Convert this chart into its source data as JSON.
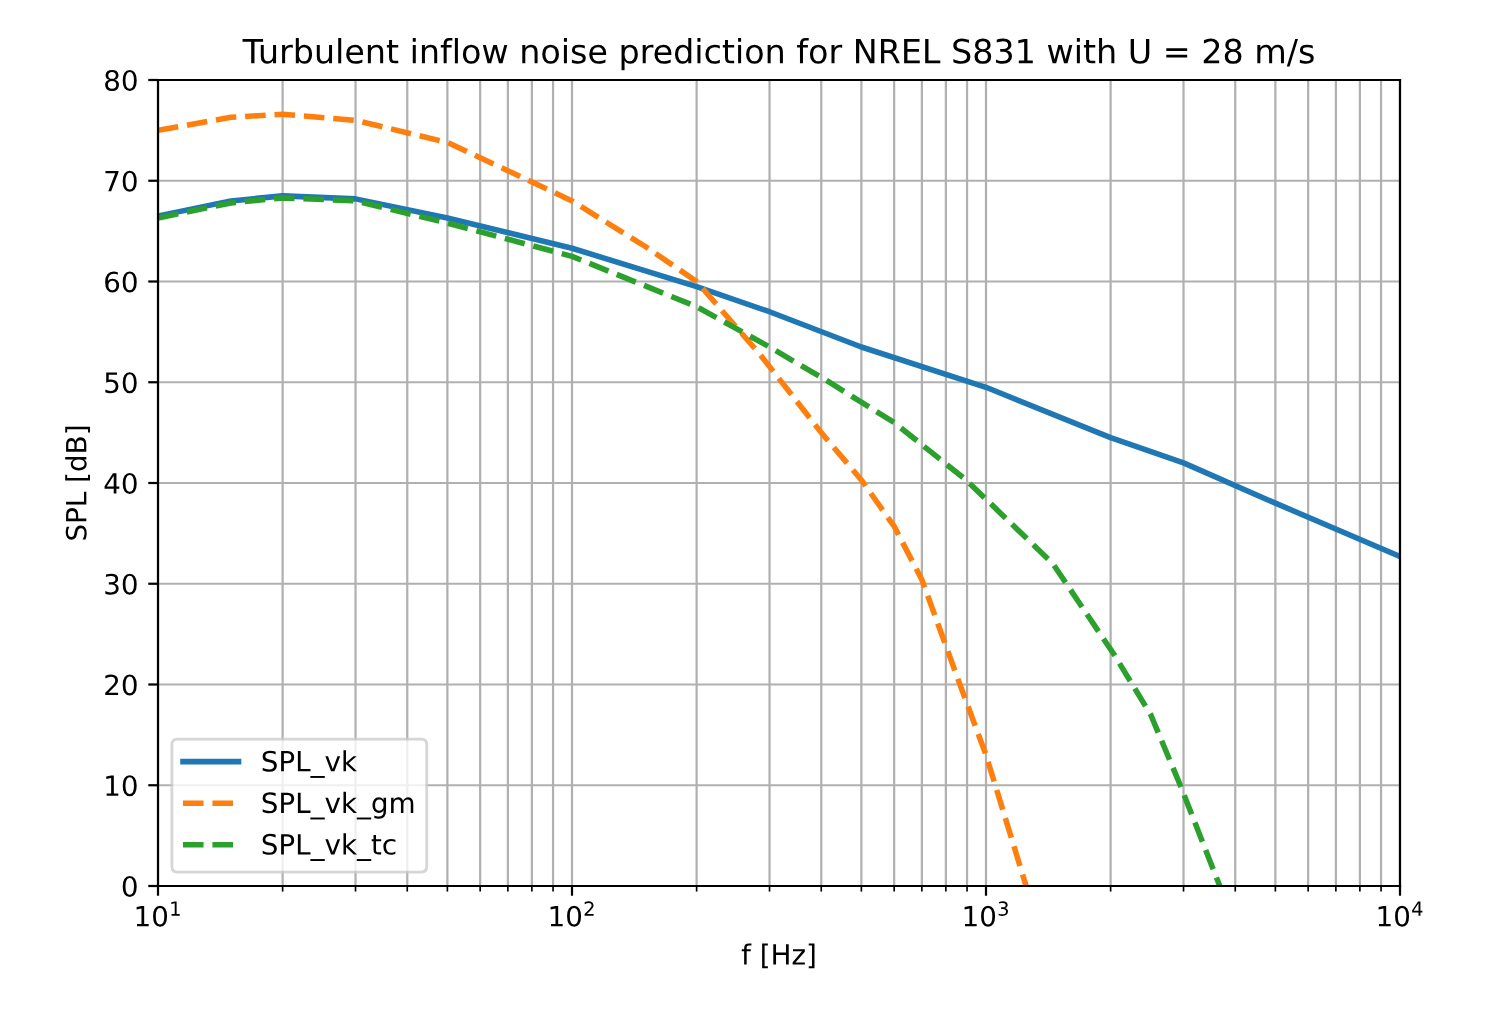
{
  "chart_data": {
    "type": "line",
    "title": "Turbulent inflow noise prediction for NREL S831 with U = 28 m/s",
    "xlabel": "f [Hz]",
    "ylabel": "SPL [dB]",
    "log": "x",
    "grid": true,
    "legend": "bottom left",
    "xlim": [
      10,
      10000
    ],
    "xticks": [
      {
        "value": 10,
        "label": "10$^{1}$"
      },
      {
        "value": 100,
        "label": "10$^{2}$"
      },
      {
        "value": 1000,
        "label": "10$^{3}$"
      },
      {
        "value": 10000,
        "label": "10$^{4}$"
      }
    ],
    "ylim": [
      0,
      80
    ],
    "yticks": [
      0,
      10,
      20,
      30,
      40,
      50,
      60,
      70,
      80
    ],
    "series": [
      {
        "name": "SPL_vk",
        "color": "#1f77b4",
        "line_style": "solid",
        "x": [
          10,
          15,
          20,
          30,
          50,
          100,
          200,
          300,
          500,
          1000,
          2000,
          3000,
          5000,
          10000
        ],
        "values": [
          66.5,
          68,
          68.5,
          68.2,
          66.3,
          63.3,
          59.5,
          57,
          53.5,
          49.5,
          44.5,
          42,
          38,
          32.7
        ]
      },
      {
        "name": "SPL_vk_gm",
        "color": "#ff7f0e",
        "line_style": "dashed",
        "x": [
          10,
          15,
          20,
          30,
          50,
          70,
          100,
          150,
          200,
          284,
          400,
          500,
          600,
          700,
          865,
          1000,
          1250
        ],
        "values": [
          75,
          76.3,
          76.6,
          76,
          73.8,
          71,
          68,
          63.5,
          60,
          52.8,
          45,
          40.3,
          35.7,
          30.4,
          20,
          13,
          0
        ]
      },
      {
        "name": "SPL_vk_tc",
        "color": "#2ca02c",
        "line_style": "dashed",
        "x": [
          10,
          15,
          20,
          30,
          50,
          100,
          200,
          300,
          411,
          600,
          895,
          1450,
          2037,
          2500,
          2946,
          3670
        ],
        "values": [
          66.3,
          67.8,
          68.3,
          68,
          65.8,
          62.5,
          57.5,
          53.5,
          50.2,
          46,
          40.3,
          32,
          23,
          17,
          10,
          0
        ]
      }
    ]
  }
}
